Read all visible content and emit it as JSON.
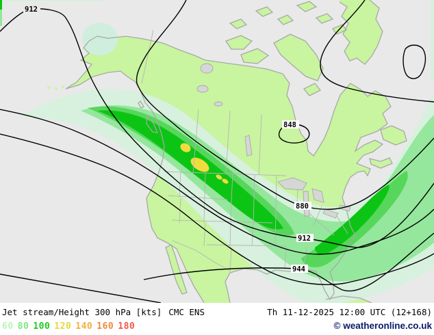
{
  "caption": {
    "product": "Jet stream/Height 300 hPa [kts]",
    "model": "CMC ENS",
    "valid": "Th 11-12-2025 12:00 UTC (12+168)",
    "copyright": "© weatheronline.co.uk"
  },
  "legend": {
    "items": [
      {
        "value": "60",
        "color": "#b9f3b9"
      },
      {
        "value": "80",
        "color": "#7de87d"
      },
      {
        "value": "100",
        "color": "#1ecc1e"
      },
      {
        "value": "120",
        "color": "#e6d83e"
      },
      {
        "value": "140",
        "color": "#f0b23c"
      },
      {
        "value": "160",
        "color": "#ef8a3b"
      },
      {
        "value": "180",
        "color": "#ef5a48"
      }
    ]
  },
  "map": {
    "contour_labels": [
      {
        "text": "912"
      },
      {
        "text": "848"
      },
      {
        "text": "880"
      },
      {
        "text": "912"
      },
      {
        "text": "944"
      }
    ],
    "palette": {
      "ocean": "#e9e9e9",
      "land": "#c9f4a0",
      "lake": "#d6d6d6",
      "coast": "#a8a8a8",
      "border": "#b5b5b5",
      "band60": "#d8f0de",
      "band80": "#94e79c",
      "bandmed": "#57d65c",
      "band100": "#0cc414",
      "band120": "#f0dc3e",
      "bering": "#cfeede",
      "contour": "#000000"
    }
  }
}
